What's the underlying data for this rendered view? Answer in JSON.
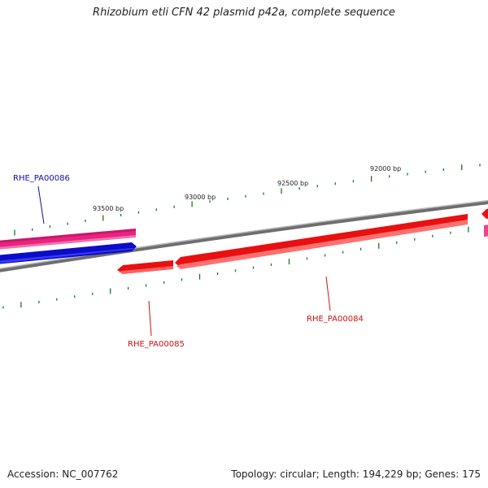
{
  "title": "Rhizobium etli CFN 42 plasmid p42a, complete sequence",
  "accession": "Accession: NC_007762",
  "summary": "Topology: circular; Length: 194,229 bp; Genes: 175",
  "colors": {
    "backbone": "#7a7a7a",
    "tick": "#1a7a1a",
    "forward_gene": "#e8247f",
    "reverse_gene": "#e81010",
    "other_gene": "#1010e0",
    "label_blue": "#1010a0",
    "label_red": "#d01010"
  },
  "ticks": {
    "outer_labels": [
      "93500 bp",
      "93000 bp",
      "92500 bp",
      "92000 bp"
    ]
  },
  "genes": [
    {
      "id": "RHE_PA00086",
      "label": "RHE_PA00086",
      "strand": "forward"
    },
    {
      "id": "RHE_PA00085",
      "label": "RHE_PA00085",
      "strand": "reverse"
    },
    {
      "id": "RHE_PA00084",
      "label": "RHE_PA00084",
      "strand": "reverse"
    }
  ]
}
